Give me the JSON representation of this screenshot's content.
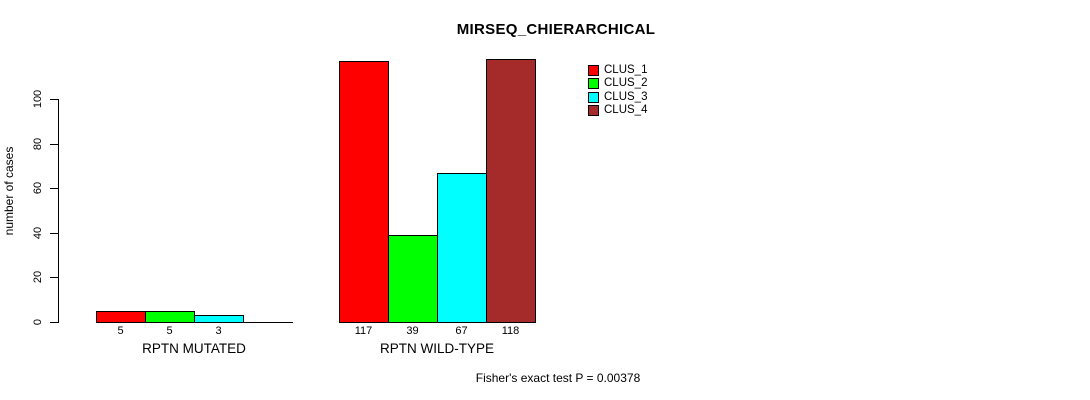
{
  "chart_data": {
    "type": "bar",
    "title": "MIRSEQ_CHIERARCHICAL",
    "ylabel": "number of cases",
    "xlabel": "",
    "categories": [
      "RPTN MUTATED",
      "RPTN WILD-TYPE"
    ],
    "series": [
      {
        "name": "CLUS_1",
        "color": "#ff0000",
        "values": [
          5,
          117
        ]
      },
      {
        "name": "CLUS_2",
        "color": "#00ff00",
        "values": [
          5,
          39
        ]
      },
      {
        "name": "CLUS_3",
        "color": "#00ffff",
        "values": [
          3,
          67
        ]
      },
      {
        "name": "CLUS_4",
        "color": "#a52a2a",
        "values": [
          0,
          118
        ]
      }
    ],
    "bar_value_labels": [
      [
        "5",
        "5",
        "3",
        ""
      ],
      [
        "117",
        "39",
        "67",
        "118"
      ]
    ],
    "yticks": [
      0,
      20,
      40,
      60,
      80,
      100
    ],
    "ylim": [
      0,
      120
    ],
    "grid": false,
    "legend_position": "top-right",
    "bar_border_color": "#000000",
    "annotation": "Fisher's exact test P = 0.00378"
  }
}
